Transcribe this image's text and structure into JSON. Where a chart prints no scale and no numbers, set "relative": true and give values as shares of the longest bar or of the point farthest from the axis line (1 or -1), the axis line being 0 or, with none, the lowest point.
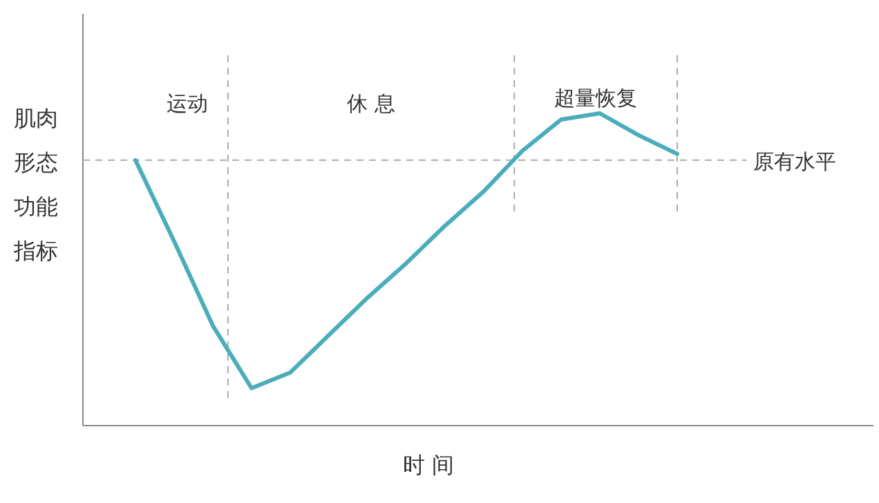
{
  "chart_data": {
    "type": "line",
    "relative": true,
    "xlabel": "时 间",
    "ylabel": "肌肉形态功能指标",
    "categories": [
      null,
      null,
      null,
      null,
      null,
      null,
      null,
      null,
      null,
      null,
      null,
      null,
      null,
      null,
      null
    ],
    "series": [
      {
        "color": "#4bacbc",
        "values": [
          0.85,
          0.59,
          0.32,
          0.12,
          0.17,
          0.29,
          0.41,
          0.52,
          0.64,
          0.75,
          0.88,
          0.98,
          1.0,
          0.93,
          0.87
        ]
      }
    ],
    "ref_lines": [
      {
        "axis": "y",
        "value": 0.85,
        "label": "原有水平",
        "color": "#aaaaaa",
        "line_style": "dashed"
      }
    ],
    "annotations": [
      "运动",
      "休 息",
      "超量恢复"
    ]
  }
}
